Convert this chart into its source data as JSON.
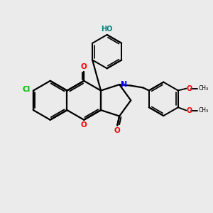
{
  "bg_color": "#ebebeb",
  "bond_color": "#000000",
  "atom_colors": {
    "O": "#ff0000",
    "N": "#0000ff",
    "Cl": "#00bb00",
    "HO": "#008080",
    "C": "#000000"
  },
  "figsize": [
    3.0,
    3.0
  ],
  "dpi": 100
}
